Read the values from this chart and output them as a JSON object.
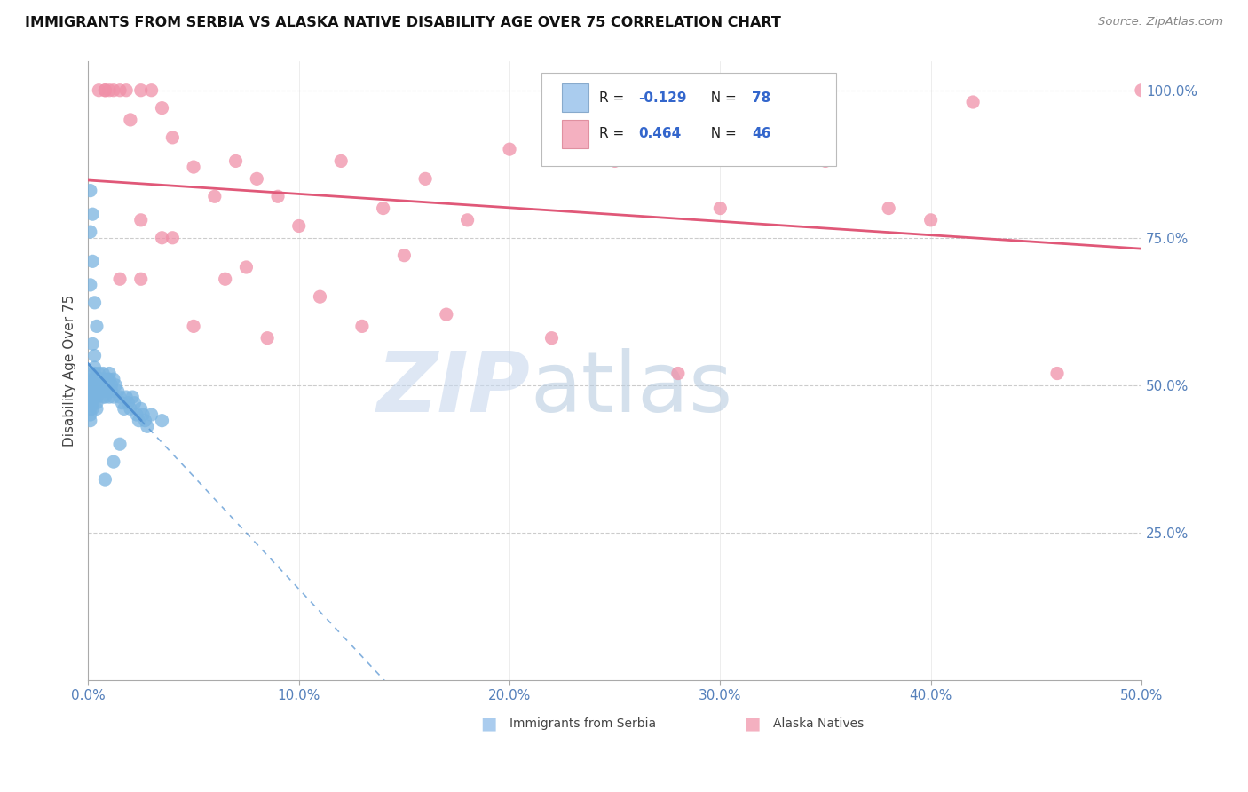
{
  "title": "IMMIGRANTS FROM SERBIA VS ALASKA NATIVE DISABILITY AGE OVER 75 CORRELATION CHART",
  "source": "Source: ZipAtlas.com",
  "ylabel": "Disability Age Over 75",
  "xlim": [
    0.0,
    0.5
  ],
  "ylim": [
    0.0,
    1.05
  ],
  "xtick_labels": [
    "0.0%",
    "",
    "",
    "",
    "",
    "10.0%",
    "",
    "",
    "",
    "",
    "20.0%",
    "",
    "",
    "",
    "",
    "30.0%",
    "",
    "",
    "",
    "",
    "40.0%",
    "",
    "",
    "",
    "",
    "50.0%"
  ],
  "xtick_vals": [
    0.0,
    0.02,
    0.04,
    0.06,
    0.08,
    0.1,
    0.12,
    0.14,
    0.16,
    0.18,
    0.2,
    0.22,
    0.24,
    0.26,
    0.28,
    0.3,
    0.32,
    0.34,
    0.36,
    0.38,
    0.4,
    0.42,
    0.44,
    0.46,
    0.48,
    0.5
  ],
  "xtick_major_labels": [
    "0.0%",
    "10.0%",
    "20.0%",
    "30.0%",
    "40.0%",
    "50.0%"
  ],
  "xtick_major_vals": [
    0.0,
    0.1,
    0.2,
    0.3,
    0.4,
    0.5
  ],
  "ytick_labels_right": [
    "25.0%",
    "50.0%",
    "75.0%",
    "100.0%"
  ],
  "ytick_vals_right": [
    0.25,
    0.5,
    0.75,
    1.0
  ],
  "legend_r1": "-0.129",
  "legend_n1": "78",
  "legend_r2": "0.464",
  "legend_n2": "46",
  "series1_color": "#7ab4e0",
  "series2_color": "#f090a8",
  "trendline1_color": "#5090d0",
  "trendline2_color": "#e05878",
  "watermark_zip": "ZIP",
  "watermark_atlas": "atlas",
  "watermark_color_zip": "#c8d8ee",
  "watermark_color_atlas": "#b8cce0",
  "background_color": "#ffffff",
  "serbia_x": [
    0.001,
    0.001,
    0.001,
    0.001,
    0.001,
    0.001,
    0.001,
    0.001,
    0.002,
    0.002,
    0.002,
    0.002,
    0.002,
    0.002,
    0.002,
    0.003,
    0.003,
    0.003,
    0.003,
    0.003,
    0.003,
    0.004,
    0.004,
    0.004,
    0.004,
    0.004,
    0.005,
    0.005,
    0.005,
    0.005,
    0.006,
    0.006,
    0.006,
    0.007,
    0.007,
    0.007,
    0.008,
    0.008,
    0.008,
    0.009,
    0.009,
    0.01,
    0.01,
    0.01,
    0.011,
    0.011,
    0.012,
    0.012,
    0.013,
    0.014,
    0.015,
    0.016,
    0.017,
    0.018,
    0.019,
    0.02,
    0.021,
    0.022,
    0.023,
    0.024,
    0.025,
    0.026,
    0.027,
    0.028,
    0.001,
    0.002,
    0.003,
    0.004,
    0.002,
    0.003,
    0.001,
    0.002,
    0.001,
    0.03,
    0.035,
    0.015,
    0.012,
    0.008
  ],
  "serbia_y": [
    0.5,
    0.5,
    0.5,
    0.48,
    0.47,
    0.46,
    0.45,
    0.44,
    0.5,
    0.49,
    0.48,
    0.47,
    0.46,
    0.52,
    0.51,
    0.5,
    0.49,
    0.48,
    0.53,
    0.52,
    0.51,
    0.5,
    0.49,
    0.48,
    0.47,
    0.46,
    0.52,
    0.51,
    0.5,
    0.49,
    0.51,
    0.5,
    0.49,
    0.52,
    0.51,
    0.48,
    0.5,
    0.49,
    0.48,
    0.51,
    0.5,
    0.52,
    0.51,
    0.48,
    0.5,
    0.49,
    0.51,
    0.48,
    0.5,
    0.49,
    0.48,
    0.47,
    0.46,
    0.48,
    0.47,
    0.46,
    0.48,
    0.47,
    0.45,
    0.44,
    0.46,
    0.45,
    0.44,
    0.43,
    0.67,
    0.71,
    0.64,
    0.6,
    0.57,
    0.55,
    0.83,
    0.79,
    0.76,
    0.45,
    0.44,
    0.4,
    0.37,
    0.34
  ],
  "alaska_x": [
    0.005,
    0.008,
    0.008,
    0.01,
    0.012,
    0.015,
    0.018,
    0.02,
    0.025,
    0.03,
    0.035,
    0.04,
    0.05,
    0.06,
    0.07,
    0.08,
    0.09,
    0.1,
    0.12,
    0.14,
    0.16,
    0.18,
    0.2,
    0.25,
    0.3,
    0.35,
    0.4,
    0.42,
    0.46,
    0.5,
    0.015,
    0.025,
    0.035,
    0.05,
    0.065,
    0.085,
    0.11,
    0.13,
    0.17,
    0.22,
    0.28,
    0.38,
    0.025,
    0.04,
    0.075,
    0.15
  ],
  "alaska_y": [
    1.0,
    1.0,
    1.0,
    1.0,
    1.0,
    1.0,
    1.0,
    0.95,
    1.0,
    1.0,
    0.97,
    0.92,
    0.87,
    0.82,
    0.88,
    0.85,
    0.82,
    0.77,
    0.88,
    0.8,
    0.85,
    0.78,
    0.9,
    0.88,
    0.8,
    0.88,
    0.78,
    0.98,
    0.52,
    1.0,
    0.68,
    0.68,
    0.75,
    0.6,
    0.68,
    0.58,
    0.65,
    0.6,
    0.62,
    0.58,
    0.52,
    0.8,
    0.78,
    0.75,
    0.7,
    0.72
  ]
}
